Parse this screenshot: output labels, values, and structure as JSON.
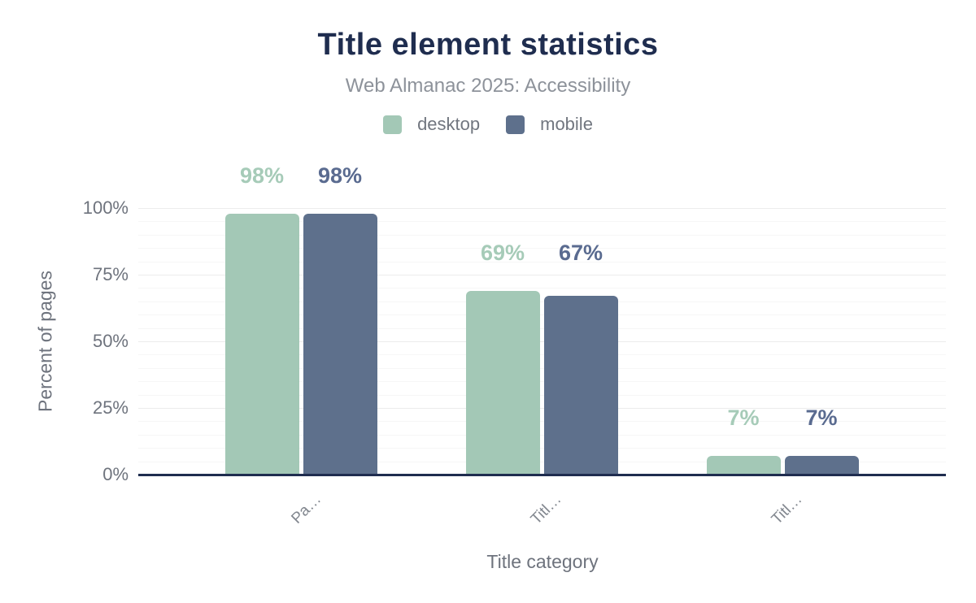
{
  "chart_data": {
    "type": "bar",
    "title": "Title element statistics",
    "subtitle": "Web Almanac 2025: Accessibility",
    "xlabel": "Title category",
    "ylabel": "Percent of pages",
    "categories": [
      "Pa…",
      "Titl…",
      "Titl…"
    ],
    "series": [
      {
        "name": "desktop",
        "color": "#a3c8b6",
        "label_color": "#a6cbb8",
        "values": [
          98,
          69,
          7
        ],
        "labels": [
          "98%",
          "69%",
          "7%"
        ]
      },
      {
        "name": "mobile",
        "color": "#5e708c",
        "label_color": "#5a6b90",
        "values": [
          98,
          67,
          7
        ],
        "labels": [
          "98%",
          "67%",
          "7%"
        ]
      }
    ],
    "y_ticks": [
      0,
      25,
      50,
      75,
      100
    ],
    "y_tick_labels": [
      "0%",
      "25%",
      "50%",
      "75%",
      "100%"
    ],
    "ylim": [
      0,
      100
    ],
    "grid": {
      "minor_step": 5,
      "major_step": 25,
      "horizontal": true
    },
    "legend_position": "top",
    "colors": {
      "title": "#1f2d4f",
      "axis_line": "#1f2d4f",
      "subtitle_text": "#8d929a",
      "tick_text": "#6e737d"
    }
  }
}
